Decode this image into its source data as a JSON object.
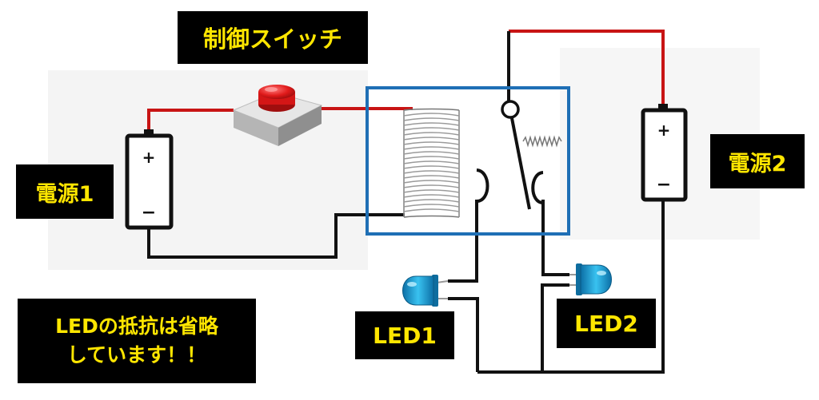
{
  "labels": {
    "control_switch": "制御スイッチ",
    "power1": "電源1",
    "power2": "電源2",
    "led1": "LED1",
    "led2": "LED2",
    "note_line1": "LEDの抵抗は省略",
    "note_line2": "しています！！"
  },
  "battery_symbols": {
    "plus": "+",
    "minus": "−"
  },
  "colors": {
    "positive_wire": "#c81414",
    "negative_wire": "#111111",
    "relay_frame": "#1f6fb5",
    "led_body": "#1a9fd9",
    "button_cap": "#e01a1a",
    "label_bg": "#000000",
    "label_text": "#ffe600"
  },
  "icons": [
    "battery-icon",
    "push-button-icon",
    "relay-coil-icon",
    "relay-spring-icon",
    "led-icon"
  ]
}
